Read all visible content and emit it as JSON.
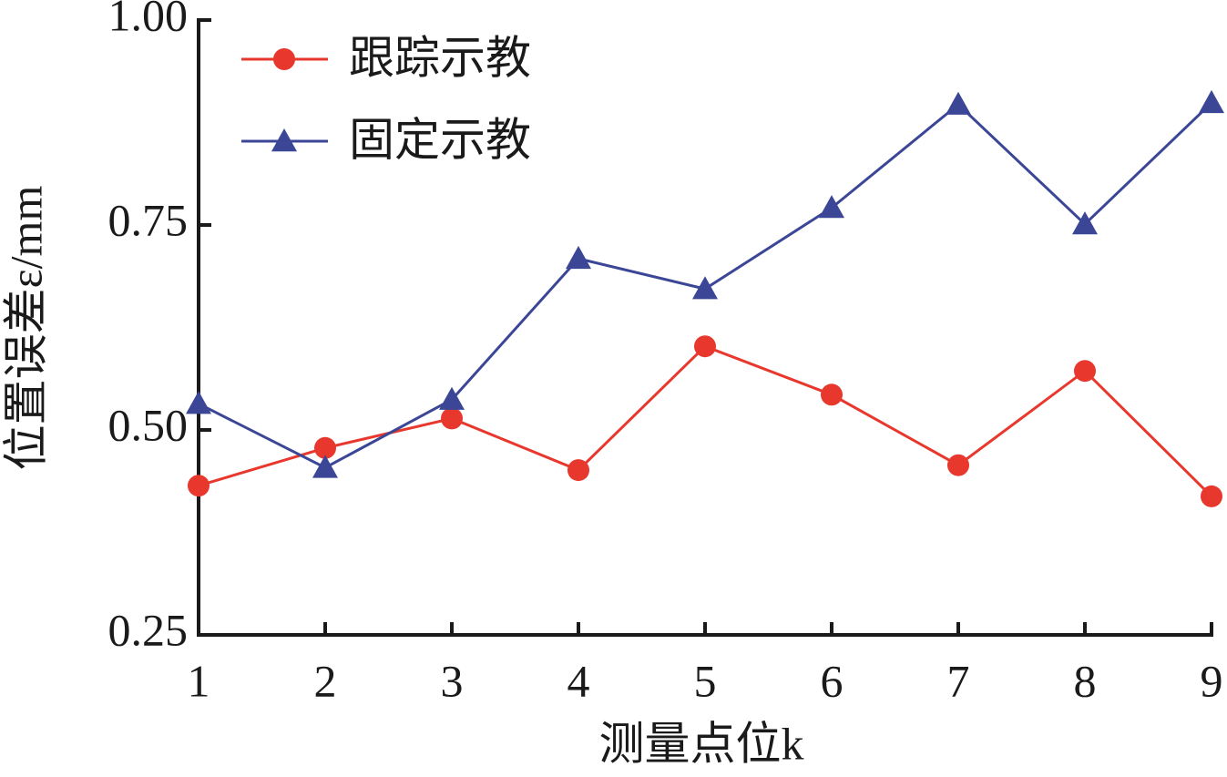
{
  "chart_data": {
    "type": "line",
    "xlabel": "测量点位k",
    "ylabel": "位置误差ε/mm",
    "xlim": [
      1,
      9
    ],
    "xticks": [
      1,
      2,
      3,
      4,
      5,
      6,
      7,
      8,
      9
    ],
    "ylim": [
      0.25,
      1.0
    ],
    "yticks": [
      {
        "value": 0.25,
        "label": "0.25"
      },
      {
        "value": 0.5,
        "label": "0.50"
      },
      {
        "value": 0.75,
        "label": "0.75"
      },
      {
        "value": 1.0,
        "label": "1.00"
      }
    ],
    "x": [
      1,
      2,
      3,
      4,
      5,
      6,
      7,
      8,
      9
    ],
    "legend": "upper left",
    "series": [
      {
        "name": "跟踪示教",
        "color": "#e8372d",
        "marker": "circle",
        "values": [
          0.432,
          0.478,
          0.514,
          0.451,
          0.602,
          0.543,
          0.457,
          0.572,
          0.419
        ]
      },
      {
        "name": "固定示教",
        "color": "#3b4796",
        "marker": "triangle",
        "values": [
          0.532,
          0.454,
          0.537,
          0.709,
          0.672,
          0.771,
          0.897,
          0.751,
          0.899
        ]
      }
    ]
  }
}
